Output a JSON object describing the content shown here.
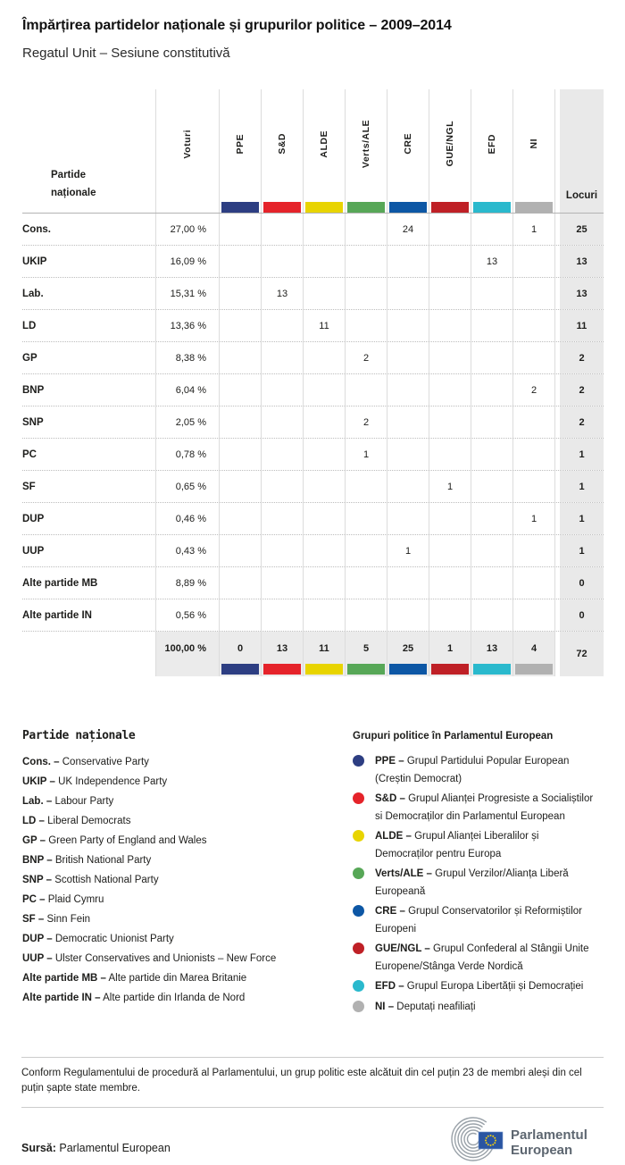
{
  "chart_data": {
    "type": "table",
    "title": "Împărțirea partidelor naționale și grupurilor politice – 2009–2014",
    "subtitle": "Regatul Unit – Sesiune constitutivă",
    "party_column_header": "Partide naționale",
    "votes_column_header": "Voturi",
    "seats_column_header": "Locuri",
    "groups": [
      {
        "label": "PPE",
        "color": "#2d3e82"
      },
      {
        "label": "S&D",
        "color": "#e5232a"
      },
      {
        "label": "ALDE",
        "color": "#e8d400"
      },
      {
        "label": "Verts/ALE",
        "color": "#57a757"
      },
      {
        "label": "CRE",
        "color": "#0d57a5"
      },
      {
        "label": "GUE/NGL",
        "color": "#bf2026"
      },
      {
        "label": "EFD",
        "color": "#2ab9cd"
      },
      {
        "label": "NI",
        "color": "#b1b1b1"
      }
    ],
    "rows": [
      {
        "party": "Cons.",
        "votes": "27,00 %",
        "seats": [
          "",
          "",
          "",
          "",
          "24",
          "",
          "",
          "1"
        ],
        "total": "25"
      },
      {
        "party": "UKIP",
        "votes": "16,09 %",
        "seats": [
          "",
          "",
          "",
          "",
          "",
          "",
          "13",
          ""
        ],
        "total": "13"
      },
      {
        "party": "Lab.",
        "votes": "15,31 %",
        "seats": [
          "",
          "13",
          "",
          "",
          "",
          "",
          "",
          ""
        ],
        "total": "13"
      },
      {
        "party": "LD",
        "votes": "13,36 %",
        "seats": [
          "",
          "",
          "11",
          "",
          "",
          "",
          "",
          ""
        ],
        "total": "11"
      },
      {
        "party": "GP",
        "votes": "8,38 %",
        "seats": [
          "",
          "",
          "",
          "2",
          "",
          "",
          "",
          ""
        ],
        "total": "2"
      },
      {
        "party": "BNP",
        "votes": "6,04 %",
        "seats": [
          "",
          "",
          "",
          "",
          "",
          "",
          "",
          "2"
        ],
        "total": "2"
      },
      {
        "party": "SNP",
        "votes": "2,05 %",
        "seats": [
          "",
          "",
          "",
          "2",
          "",
          "",
          "",
          ""
        ],
        "total": "2"
      },
      {
        "party": "PC",
        "votes": "0,78 %",
        "seats": [
          "",
          "",
          "",
          "1",
          "",
          "",
          "",
          ""
        ],
        "total": "1"
      },
      {
        "party": "SF",
        "votes": "0,65 %",
        "seats": [
          "",
          "",
          "",
          "",
          "",
          "1",
          "",
          ""
        ],
        "total": "1"
      },
      {
        "party": "DUP",
        "votes": "0,46 %",
        "seats": [
          "",
          "",
          "",
          "",
          "",
          "",
          "",
          "1"
        ],
        "total": "1"
      },
      {
        "party": "UUP",
        "votes": "0,43 %",
        "seats": [
          "",
          "",
          "",
          "",
          "1",
          "",
          "",
          ""
        ],
        "total": "1"
      },
      {
        "party": "Alte partide MB",
        "votes": "8,89 %",
        "seats": [
          "",
          "",
          "",
          "",
          "",
          "",
          "",
          ""
        ],
        "total": "0"
      },
      {
        "party": "Alte partide IN",
        "votes": "0,56 %",
        "seats": [
          "",
          "",
          "",
          "",
          "",
          "",
          "",
          ""
        ],
        "total": "0"
      }
    ],
    "total_row": {
      "votes": "100,00 %",
      "seats": [
        "0",
        "13",
        "11",
        "5",
        "25",
        "1",
        "13",
        "4"
      ],
      "total": "72"
    }
  },
  "legend_parties": {
    "heading": "Partide naționale",
    "items": [
      {
        "abbr": "Cons. –",
        "name": "Conservative Party"
      },
      {
        "abbr": "UKIP –",
        "name": "UK Independence Party"
      },
      {
        "abbr": "Lab. –",
        "name": "Labour Party"
      },
      {
        "abbr": "LD –",
        "name": "Liberal Democrats"
      },
      {
        "abbr": "GP –",
        "name": "Green Party of England and Wales"
      },
      {
        "abbr": "BNP –",
        "name": "British National Party"
      },
      {
        "abbr": "SNP –",
        "name": "Scottish National Party"
      },
      {
        "abbr": "PC –",
        "name": "Plaid Cymru"
      },
      {
        "abbr": "SF –",
        "name": "Sinn Fein"
      },
      {
        "abbr": "DUP –",
        "name": "Democratic Unionist Party"
      },
      {
        "abbr": "UUP –",
        "name": "Ulster Conservatives and Unionists – New Force"
      },
      {
        "abbr": "Alte partide MB –",
        "name": "Alte partide din Marea Britanie"
      },
      {
        "abbr": "Alte partide IN –",
        "name": "Alte partide din Irlanda de Nord"
      }
    ]
  },
  "legend_groups": {
    "heading": "Grupuri politice în Parlamentul European",
    "items": [
      {
        "abbr": "PPE –",
        "name": "Grupul Partidului Popular European (Creștin Democrat)",
        "color": "#2d3e82"
      },
      {
        "abbr": "S&D –",
        "name": "Grupul Alianței Progresiste a Socialiștilor si Democraților din Parlamentul European",
        "color": "#e5232a"
      },
      {
        "abbr": "ALDE –",
        "name": "Grupul Alianței Liberalilor și Democraților pentru Europa",
        "color": "#e8d400"
      },
      {
        "abbr": "Verts/ALE –",
        "name": "Grupul Verzilor/Alianța Liberă Europeană",
        "color": "#57a757"
      },
      {
        "abbr": "CRE –",
        "name": "Grupul Conservatorilor și Reformiștilor Europeni",
        "color": "#0d57a5"
      },
      {
        "abbr": "GUE/NGL –",
        "name": "Grupul Confederal al Stângii Unite Europene/Stânga Verde Nordică",
        "color": "#bf2026"
      },
      {
        "abbr": "EFD –",
        "name": "Grupul Europa Libertății și Democrației",
        "color": "#2ab9cd"
      },
      {
        "abbr": "NI –",
        "name": "Deputați neafiliați",
        "color": "#b1b1b1"
      }
    ]
  },
  "footnote": "Conform Regulamentului de procedură al Parlamentului, un grup politic este alcătuit din cel puțin 23 de membri aleși din cel puțin șapte state membre.",
  "source": {
    "label": "Sursă:",
    "text": "Parlamentul European"
  },
  "logo": {
    "line1": "Parlamentul",
    "line2": "European"
  }
}
